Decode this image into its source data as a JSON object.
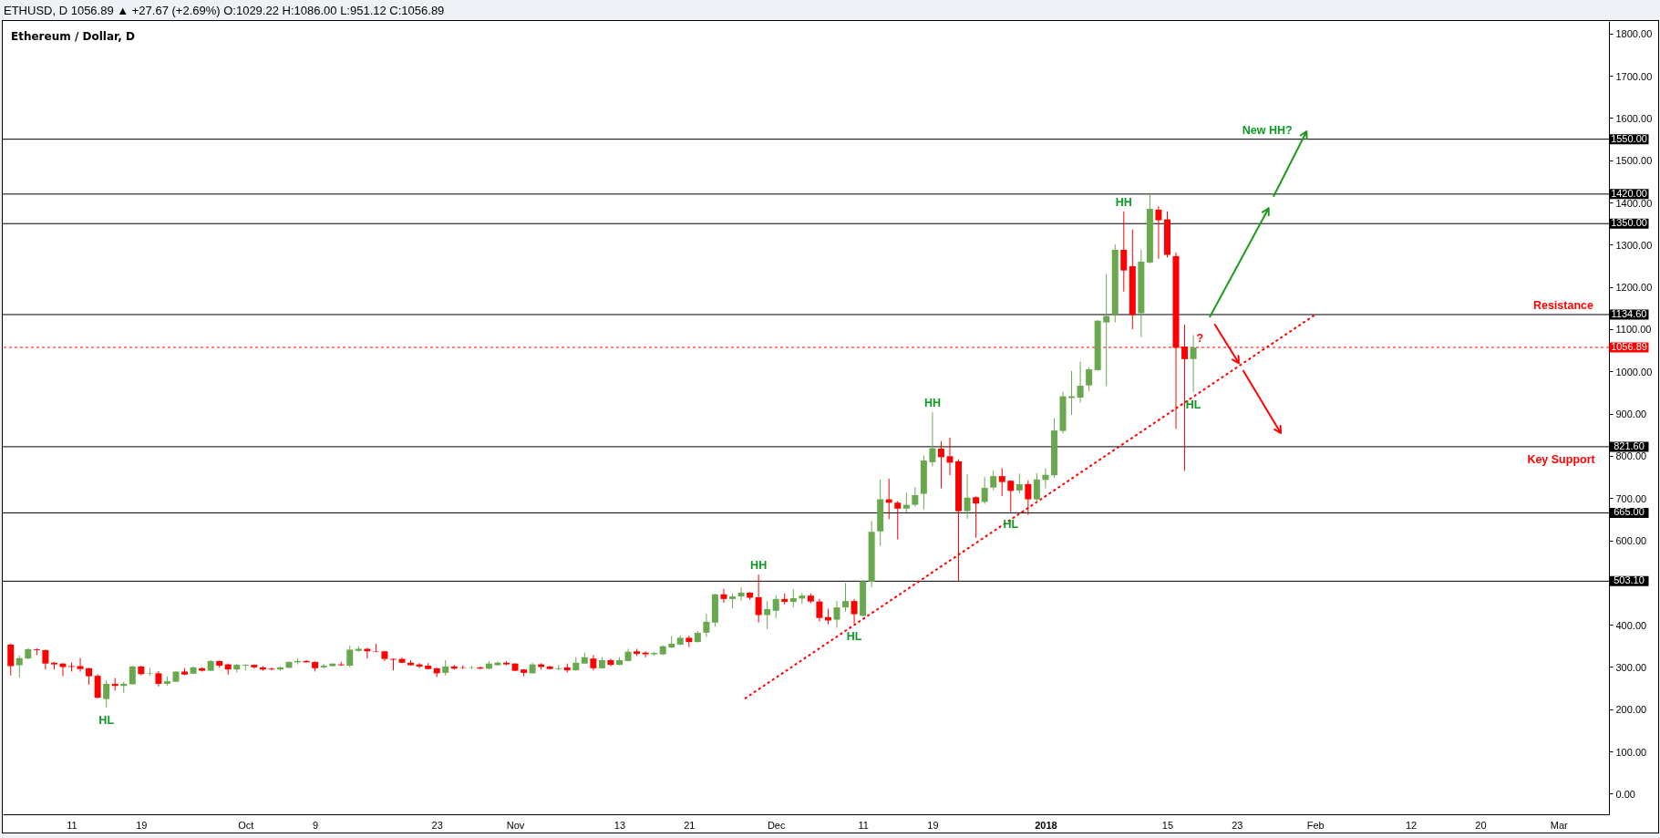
{
  "chart_data": {
    "type": "candlestick",
    "title": "ETHUSD, D 1056.89 ▲ +27.67 (+2.69%) O:1029.22 H:1086.00 L:951.12 C:1056.89",
    "subtitle": "Ethereum / Dollar, D",
    "x": [
      "2017-09-04",
      "2017-09-05",
      "2017-09-06",
      "2017-09-07",
      "2017-09-08",
      "2017-09-09",
      "2017-09-10",
      "2017-09-11",
      "2017-09-12",
      "2017-09-13",
      "2017-09-14",
      "2017-09-15",
      "2017-09-16",
      "2017-09-17",
      "2017-09-18",
      "2017-09-19",
      "2017-09-20",
      "2017-09-21",
      "2017-09-22",
      "2017-09-23",
      "2017-09-24",
      "2017-09-25",
      "2017-09-26",
      "2017-09-27",
      "2017-09-28",
      "2017-09-29",
      "2017-09-30",
      "2017-10-01",
      "2017-10-02",
      "2017-10-03",
      "2017-10-04",
      "2017-10-05",
      "2017-10-06",
      "2017-10-07",
      "2017-10-08",
      "2017-10-09",
      "2017-10-10",
      "2017-10-11",
      "2017-10-12",
      "2017-10-13",
      "2017-10-14",
      "2017-10-15",
      "2017-10-16",
      "2017-10-17",
      "2017-10-18",
      "2017-10-19",
      "2017-10-20",
      "2017-10-21",
      "2017-10-22",
      "2017-10-23",
      "2017-10-24",
      "2017-10-25",
      "2017-10-26",
      "2017-10-27",
      "2017-10-28",
      "2017-10-29",
      "2017-10-30",
      "2017-10-31",
      "2017-11-01",
      "2017-11-02",
      "2017-11-03",
      "2017-11-04",
      "2017-11-05",
      "2017-11-06",
      "2017-11-07",
      "2017-11-08",
      "2017-11-09",
      "2017-11-10",
      "2017-11-11",
      "2017-11-12",
      "2017-11-13",
      "2017-11-14",
      "2017-11-15",
      "2017-11-16",
      "2017-11-17",
      "2017-11-18",
      "2017-11-19",
      "2017-11-20",
      "2017-11-21",
      "2017-11-22",
      "2017-11-23",
      "2017-11-24",
      "2017-11-25",
      "2017-11-26",
      "2017-11-27",
      "2017-11-28",
      "2017-11-29",
      "2017-11-30",
      "2017-12-01",
      "2017-12-02",
      "2017-12-03",
      "2017-12-04",
      "2017-12-05",
      "2017-12-06",
      "2017-12-07",
      "2017-12-08",
      "2017-12-09",
      "2017-12-10",
      "2017-12-11",
      "2017-12-12",
      "2017-12-13",
      "2017-12-14",
      "2017-12-15",
      "2017-12-16",
      "2017-12-17",
      "2017-12-18",
      "2017-12-19",
      "2017-12-20",
      "2017-12-21",
      "2017-12-22",
      "2017-12-23",
      "2017-12-24",
      "2017-12-25",
      "2017-12-26",
      "2017-12-27",
      "2017-12-28",
      "2017-12-29",
      "2017-12-30",
      "2017-12-31",
      "2018-01-01",
      "2018-01-02",
      "2018-01-03",
      "2018-01-04",
      "2018-01-05",
      "2018-01-06",
      "2018-01-07",
      "2018-01-08",
      "2018-01-09",
      "2018-01-10",
      "2018-01-11",
      "2018-01-12",
      "2018-01-13",
      "2018-01-14",
      "2018-01-15",
      "2018-01-16",
      "2018-01-17",
      "2018-01-18"
    ],
    "ohlc": [
      [
        353,
        355,
        280,
        302
      ],
      [
        304,
        327,
        275,
        321
      ],
      [
        320,
        345,
        319,
        342
      ],
      [
        342,
        344,
        328,
        340
      ],
      [
        340,
        341,
        294,
        308
      ],
      [
        310,
        312,
        294,
        306
      ],
      [
        308,
        309,
        278,
        300
      ],
      [
        302,
        310,
        289,
        300
      ],
      [
        302,
        321,
        289,
        295
      ],
      [
        297,
        298,
        258,
        278
      ],
      [
        279,
        283,
        226,
        227
      ],
      [
        224,
        268,
        204,
        260
      ],
      [
        260,
        274,
        244,
        255
      ],
      [
        255,
        265,
        239,
        260
      ],
      [
        259,
        303,
        258,
        301
      ],
      [
        301,
        303,
        280,
        283
      ],
      [
        284,
        297,
        279,
        285
      ],
      [
        285,
        290,
        254,
        260
      ],
      [
        260,
        277,
        255,
        266
      ],
      [
        265,
        290,
        264,
        289
      ],
      [
        289,
        297,
        280,
        282
      ],
      [
        284,
        301,
        283,
        299
      ],
      [
        297,
        299,
        289,
        291
      ],
      [
        291,
        316,
        290,
        314
      ],
      [
        314,
        315,
        298,
        303
      ],
      [
        306,
        308,
        282,
        294
      ],
      [
        294,
        308,
        287,
        305
      ],
      [
        303,
        306,
        292,
        305
      ],
      [
        305,
        306,
        296,
        299
      ],
      [
        299,
        302,
        291,
        294
      ],
      [
        296,
        299,
        292,
        294
      ],
      [
        294,
        301,
        291,
        299
      ],
      [
        298,
        313,
        297,
        312
      ],
      [
        311,
        320,
        306,
        314
      ],
      [
        314,
        316,
        310,
        311
      ],
      [
        312,
        313,
        289,
        297
      ],
      [
        299,
        308,
        296,
        303
      ],
      [
        302,
        308,
        301,
        308
      ],
      [
        306,
        312,
        303,
        304
      ],
      [
        303,
        351,
        299,
        341
      ],
      [
        338,
        349,
        336,
        343
      ],
      [
        343,
        345,
        320,
        337
      ],
      [
        337,
        355,
        335,
        336
      ],
      [
        337,
        338,
        314,
        319
      ],
      [
        319,
        320,
        292,
        317
      ],
      [
        319,
        322,
        309,
        310
      ],
      [
        310,
        316,
        303,
        304
      ],
      [
        306,
        309,
        297,
        301
      ],
      [
        303,
        309,
        294,
        295
      ],
      [
        297,
        298,
        276,
        285
      ],
      [
        286,
        316,
        280,
        301
      ],
      [
        301,
        305,
        294,
        296
      ],
      [
        299,
        304,
        295,
        298
      ],
      [
        298,
        303,
        295,
        299
      ],
      [
        299,
        301,
        295,
        296
      ],
      [
        296,
        314,
        294,
        308
      ],
      [
        304,
        313,
        303,
        310
      ],
      [
        310,
        313,
        304,
        306
      ],
      [
        308,
        309,
        290,
        291
      ],
      [
        294,
        295,
        278,
        286
      ],
      [
        285,
        310,
        284,
        306
      ],
      [
        306,
        309,
        294,
        300
      ],
      [
        301,
        303,
        294,
        295
      ],
      [
        295,
        305,
        292,
        297
      ],
      [
        299,
        308,
        287,
        292
      ],
      [
        292,
        323,
        291,
        310
      ],
      [
        308,
        334,
        307,
        323
      ],
      [
        320,
        328,
        292,
        297
      ],
      [
        297,
        323,
        296,
        316
      ],
      [
        316,
        320,
        302,
        305
      ],
      [
        305,
        323,
        304,
        316
      ],
      [
        314,
        343,
        313,
        336
      ],
      [
        337,
        343,
        326,
        331
      ],
      [
        334,
        337,
        323,
        330
      ],
      [
        330,
        336,
        327,
        333
      ],
      [
        330,
        351,
        328,
        349
      ],
      [
        346,
        373,
        345,
        355
      ],
      [
        353,
        374,
        351,
        369
      ],
      [
        369,
        374,
        347,
        359
      ],
      [
        359,
        385,
        358,
        381
      ],
      [
        381,
        426,
        371,
        407
      ],
      [
        405,
        473,
        396,
        472
      ],
      [
        472,
        485,
        452,
        461
      ],
      [
        461,
        474,
        439,
        467
      ],
      [
        467,
        488,
        457,
        476
      ],
      [
        476,
        477,
        459,
        464
      ],
      [
        465,
        519,
        405,
        423
      ],
      [
        423,
        456,
        390,
        437
      ],
      [
        433,
        470,
        416,
        461
      ],
      [
        461,
        474,
        448,
        454
      ],
      [
        454,
        484,
        441,
        463
      ],
      [
        462,
        475,
        449,
        469
      ],
      [
        469,
        474,
        451,
        455
      ],
      [
        455,
        461,
        408,
        416
      ],
      [
        418,
        438,
        401,
        410
      ],
      [
        412,
        456,
        393,
        441
      ],
      [
        441,
        499,
        431,
        456
      ],
      [
        456,
        461,
        403,
        425
      ],
      [
        421,
        506,
        420,
        503
      ],
      [
        502,
        646,
        489,
        620
      ],
      [
        621,
        744,
        587,
        697
      ],
      [
        697,
        746,
        650,
        689
      ],
      [
        689,
        693,
        602,
        675
      ],
      [
        675,
        713,
        667,
        684
      ],
      [
        684,
        726,
        680,
        707
      ],
      [
        710,
        801,
        673,
        789
      ],
      [
        785,
        903,
        775,
        818
      ],
      [
        817,
        835,
        723,
        797
      ],
      [
        799,
        843,
        754,
        784
      ],
      [
        787,
        792,
        503,
        669
      ],
      [
        669,
        756,
        651,
        701
      ],
      [
        702,
        704,
        606,
        687
      ],
      [
        691,
        750,
        686,
        724
      ],
      [
        725,
        765,
        719,
        752
      ],
      [
        752,
        771,
        705,
        738
      ],
      [
        741,
        742,
        667,
        717
      ],
      [
        718,
        758,
        711,
        733
      ],
      [
        733,
        742,
        660,
        697
      ],
      [
        697,
        759,
        690,
        744
      ],
      [
        743,
        770,
        723,
        755
      ],
      [
        754,
        889,
        748,
        860
      ],
      [
        859,
        952,
        853,
        941
      ],
      [
        937,
        1001,
        897,
        941
      ],
      [
        938,
        1023,
        926,
        966
      ],
      [
        967,
        1010,
        953,
        1005
      ],
      [
        1003,
        1122,
        1002,
        1120
      ],
      [
        1116,
        1230,
        965,
        1131
      ],
      [
        1135,
        1301,
        1116,
        1288
      ],
      [
        1288,
        1379,
        1189,
        1239
      ],
      [
        1249,
        1336,
        1100,
        1134
      ],
      [
        1138,
        1288,
        1081,
        1260
      ],
      [
        1258,
        1421,
        1256,
        1385
      ],
      [
        1383,
        1391,
        1267,
        1358
      ],
      [
        1360,
        1379,
        1270,
        1276
      ],
      [
        1273,
        1282,
        864,
        1056
      ],
      [
        1059,
        1111,
        764,
        1029
      ],
      [
        1029.22,
        1086.0,
        951.12,
        1056.89
      ]
    ],
    "colors": [
      "#ff0000",
      "#6aa84f",
      "#6aa84f",
      "#ff0000",
      "#ff0000",
      "#ff0000",
      "#ff0000",
      "#ff0000",
      "#ff0000",
      "#ff0000",
      "#ff0000",
      "#6aa84f",
      "#ff0000",
      "#6aa84f",
      "#6aa84f",
      "#ff0000",
      "#6aa84f",
      "#ff0000",
      "#6aa84f",
      "#6aa84f",
      "#ff0000",
      "#6aa84f",
      "#ff0000",
      "#6aa84f",
      "#ff0000",
      "#ff0000",
      "#6aa84f",
      "#6aa84f",
      "#ff0000",
      "#ff0000",
      "#ff0000",
      "#6aa84f",
      "#6aa84f",
      "#6aa84f",
      "#ff0000",
      "#ff0000",
      "#6aa84f",
      "#6aa84f",
      "#ff0000",
      "#6aa84f",
      "#6aa84f",
      "#ff0000",
      "#ff0000",
      "#ff0000",
      "#ff0000",
      "#ff0000",
      "#ff0000",
      "#ff0000",
      "#ff0000",
      "#ff0000",
      "#6aa84f",
      "#ff0000",
      "#ff0000",
      "#6aa84f",
      "#ff0000",
      "#6aa84f",
      "#6aa84f",
      "#ff0000",
      "#ff0000",
      "#ff0000",
      "#6aa84f",
      "#ff0000",
      "#ff0000",
      "#6aa84f",
      "#ff0000",
      "#6aa84f",
      "#6aa84f",
      "#ff0000",
      "#6aa84f",
      "#ff0000",
      "#6aa84f",
      "#6aa84f",
      "#ff0000",
      "#ff0000",
      "#6aa84f",
      "#6aa84f",
      "#6aa84f",
      "#6aa84f",
      "#ff0000",
      "#6aa84f",
      "#6aa84f",
      "#6aa84f",
      "#ff0000",
      "#6aa84f",
      "#6aa84f",
      "#ff0000",
      "#ff0000",
      "#6aa84f",
      "#6aa84f",
      "#ff0000",
      "#6aa84f",
      "#6aa84f",
      "#ff0000",
      "#ff0000",
      "#ff0000",
      "#6aa84f",
      "#6aa84f",
      "#ff0000",
      "#6aa84f",
      "#6aa84f",
      "#6aa84f",
      "#ff0000",
      "#ff0000",
      "#6aa84f",
      "#6aa84f",
      "#6aa84f",
      "#6aa84f",
      "#ff0000",
      "#ff0000",
      "#ff0000",
      "#6aa84f",
      "#ff0000",
      "#6aa84f",
      "#6aa84f",
      "#ff0000",
      "#ff0000",
      "#6aa84f",
      "#ff0000",
      "#6aa84f",
      "#6aa84f",
      "#6aa84f",
      "#6aa84f",
      "#6aa84f",
      "#6aa84f",
      "#6aa84f",
      "#6aa84f",
      "#6aa84f",
      "#6aa84f",
      "#ff0000",
      "#ff0000",
      "#6aa84f",
      "#6aa84f",
      "#ff0000",
      "#ff0000",
      "#ff0000",
      "#ff0000",
      "#6aa84f"
    ],
    "series": [
      {
        "type": "line",
        "x": [
          "2017-11-27T10:00",
          "2018-01-31T22:00"
        ],
        "values": [
          225,
          1133
        ],
        "color": "#ff0000",
        "line_style": "dotted"
      }
    ],
    "ref_lines": [
      {
        "axis": "y",
        "value": 1550,
        "label": "1550.00",
        "color": "#000000"
      },
      {
        "axis": "y",
        "value": 1420,
        "label": "1420.00",
        "color": "#000000"
      },
      {
        "axis": "y",
        "value": 1350,
        "label": "1350.00",
        "color": "#000000"
      },
      {
        "axis": "y",
        "value": 1134.6,
        "label": "1134.60",
        "color": "#000000"
      },
      {
        "axis": "y",
        "value": 821.6,
        "label": "821.60",
        "color": "#000000"
      },
      {
        "axis": "y",
        "value": 665,
        "label": "665.00",
        "color": "#000000"
      },
      {
        "axis": "y",
        "value": 503.1,
        "label": "503.10",
        "color": "#000000"
      },
      {
        "axis": "y",
        "value": 1056.89,
        "label": "1056.89",
        "color": "#ff0000",
        "line_style": "dotted"
      }
    ],
    "annotations": [
      {
        "text": "HL",
        "x": "2017-09-15",
        "y": 204
      },
      {
        "text": "HH",
        "x": "2017-11-29",
        "y": 519
      },
      {
        "text": "HL",
        "x": "2017-12-10",
        "y": 403
      },
      {
        "text": "HH",
        "x": "2017-12-19",
        "y": 903
      },
      {
        "text": "HL",
        "x": "2017-12-28",
        "y": 667
      },
      {
        "text": "HH",
        "x": "2018-01-10",
        "y": 1379
      },
      {
        "text": "HL",
        "x": "2018-01-18",
        "y": 951.12
      },
      {
        "text": "Resistance",
        "x": "2018-03-01T13:00",
        "y": 1134.6
      },
      {
        "text": "Key Support",
        "x": "2018-03-01T07:00",
        "y": 821.6
      },
      {
        "text": "New HH?",
        "x": "2018-01-26T12:00",
        "y": 1550
      },
      {
        "text": "?",
        "x": "2018-01-18T18:00",
        "y": 1056.89
      }
    ],
    "xlim": [
      "2017-09-03T02:00",
      "2018-03-06T19:00"
    ],
    "xticks": [
      {
        "value": "2017-09-11",
        "label": "11"
      },
      {
        "value": "2017-09-19",
        "label": "19"
      },
      {
        "value": "2017-10-01",
        "label": "Oct"
      },
      {
        "value": "2017-10-09",
        "label": "9"
      },
      {
        "value": "2017-10-23",
        "label": "23"
      },
      {
        "value": "2017-11-01",
        "label": "Nov"
      },
      {
        "value": "2017-11-13",
        "label": "13"
      },
      {
        "value": "2017-11-21",
        "label": "21"
      },
      {
        "value": "2017-12-01",
        "label": "Dec"
      },
      {
        "value": "2017-12-11",
        "label": "11"
      },
      {
        "value": "2017-12-19",
        "label": "19"
      },
      {
        "value": "2018-01-01",
        "label": "2018"
      },
      {
        "value": "2018-01-15",
        "label": "15"
      },
      {
        "value": "2018-01-23",
        "label": "23"
      },
      {
        "value": "2018-02-01",
        "label": "Feb"
      },
      {
        "value": "2018-02-12",
        "label": "12"
      },
      {
        "value": "2018-02-20",
        "label": "20"
      },
      {
        "value": "2018-03-01",
        "label": "Mar"
      }
    ],
    "ylim": [
      -49,
      1830
    ],
    "yticks": [
      {
        "value": 0,
        "label": "0.00"
      },
      {
        "value": 100,
        "label": "100.00"
      },
      {
        "value": 200,
        "label": "200.00"
      },
      {
        "value": 300,
        "label": "300.00"
      },
      {
        "value": 400,
        "label": "400.00"
      },
      {
        "value": 600,
        "label": "600.00"
      },
      {
        "value": 700,
        "label": "700.00"
      },
      {
        "value": 800,
        "label": "800.00"
      },
      {
        "value": 900,
        "label": "900.00"
      },
      {
        "value": 1000,
        "label": "1000.00"
      },
      {
        "value": 1100,
        "label": "1100.00"
      },
      {
        "value": 1200,
        "label": "1200.00"
      },
      {
        "value": 1300,
        "label": "1300.00"
      },
      {
        "value": 1400,
        "label": "1400.00"
      },
      {
        "value": 1500,
        "label": "1500.00"
      },
      {
        "value": 1600,
        "label": "1600.00"
      },
      {
        "value": 1700,
        "label": "1700.00"
      },
      {
        "value": 1800,
        "label": "1800.00"
      }
    ]
  }
}
